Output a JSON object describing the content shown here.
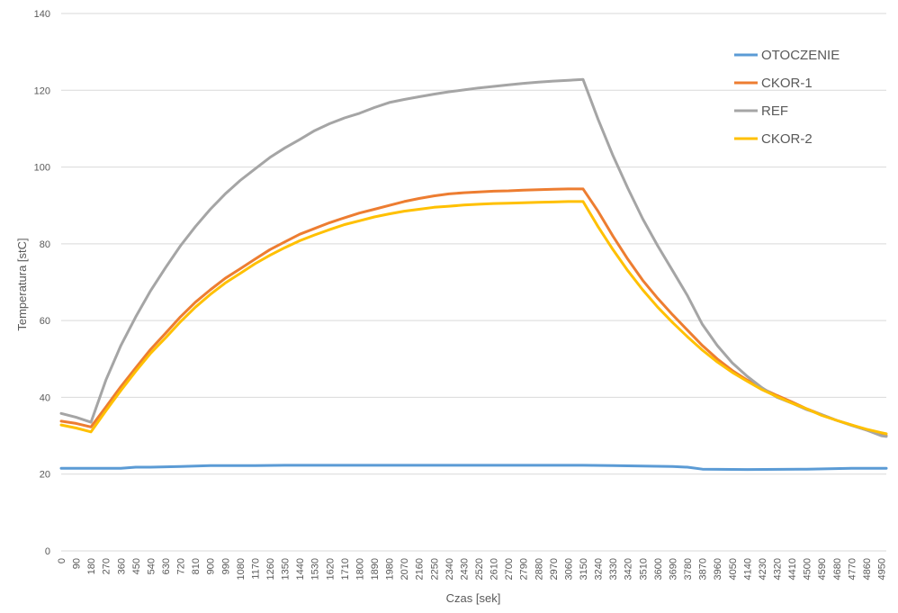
{
  "chart_data": {
    "type": "line",
    "title": "",
    "xlabel": "Czas [sek]",
    "ylabel": "Temperatura [stC]",
    "xlim": [
      0,
      4980
    ],
    "ylim": [
      0,
      140
    ],
    "y_ticks": [
      0,
      20,
      40,
      60,
      80,
      100,
      120,
      140
    ],
    "x_tick_step": 90,
    "grid": "horizontal",
    "legend": "top-right",
    "series": [
      {
        "name": "OTOCZENIE",
        "color": "#5b9bd5",
        "points": [
          [
            0,
            21.5
          ],
          [
            180,
            21.5
          ],
          [
            360,
            21.5
          ],
          [
            450,
            21.8
          ],
          [
            540,
            21.8
          ],
          [
            720,
            22.0
          ],
          [
            900,
            22.2
          ],
          [
            1170,
            22.2
          ],
          [
            1350,
            22.3
          ],
          [
            1800,
            22.3
          ],
          [
            2700,
            22.3
          ],
          [
            3150,
            22.3
          ],
          [
            3330,
            22.2
          ],
          [
            3690,
            22.0
          ],
          [
            3780,
            21.8
          ],
          [
            3870,
            21.3
          ],
          [
            4140,
            21.2
          ],
          [
            4500,
            21.3
          ],
          [
            4770,
            21.5
          ],
          [
            4980,
            21.5
          ]
        ]
      },
      {
        "name": "CKOR-1",
        "color": "#ed7d31",
        "points": [
          [
            0,
            33.8
          ],
          [
            90,
            33.2
          ],
          [
            180,
            32.3
          ],
          [
            270,
            37.5
          ],
          [
            360,
            42.8
          ],
          [
            450,
            47.7
          ],
          [
            540,
            52.5
          ],
          [
            630,
            56.7
          ],
          [
            720,
            61.0
          ],
          [
            810,
            64.8
          ],
          [
            900,
            68.0
          ],
          [
            990,
            71.0
          ],
          [
            1080,
            73.5
          ],
          [
            1170,
            76.0
          ],
          [
            1260,
            78.5
          ],
          [
            1350,
            80.5
          ],
          [
            1440,
            82.5
          ],
          [
            1530,
            84.0
          ],
          [
            1620,
            85.5
          ],
          [
            1710,
            86.8
          ],
          [
            1800,
            88.0
          ],
          [
            1890,
            89.0
          ],
          [
            1980,
            90.0
          ],
          [
            2070,
            91.0
          ],
          [
            2160,
            91.8
          ],
          [
            2250,
            92.5
          ],
          [
            2340,
            93.0
          ],
          [
            2430,
            93.3
          ],
          [
            2520,
            93.5
          ],
          [
            2610,
            93.7
          ],
          [
            2700,
            93.8
          ],
          [
            2790,
            94.0
          ],
          [
            2880,
            94.1
          ],
          [
            2970,
            94.2
          ],
          [
            3060,
            94.3
          ],
          [
            3150,
            94.3
          ],
          [
            3240,
            88.5
          ],
          [
            3330,
            82.0
          ],
          [
            3420,
            76.0
          ],
          [
            3510,
            70.5
          ],
          [
            3600,
            65.8
          ],
          [
            3690,
            61.5
          ],
          [
            3780,
            57.5
          ],
          [
            3870,
            53.5
          ],
          [
            3960,
            50.0
          ],
          [
            4050,
            47.0
          ],
          [
            4140,
            44.5
          ],
          [
            4230,
            42.3
          ],
          [
            4320,
            40.5
          ],
          [
            4410,
            38.8
          ],
          [
            4500,
            37.0
          ],
          [
            4590,
            35.5
          ],
          [
            4680,
            34.0
          ],
          [
            4770,
            32.8
          ],
          [
            4860,
            31.5
          ],
          [
            4950,
            30.3
          ],
          [
            4980,
            30.0
          ]
        ]
      },
      {
        "name": "REF",
        "color": "#a5a5a5",
        "points": [
          [
            0,
            35.8
          ],
          [
            90,
            34.8
          ],
          [
            180,
            33.5
          ],
          [
            270,
            44.5
          ],
          [
            360,
            53.5
          ],
          [
            450,
            61.0
          ],
          [
            540,
            67.8
          ],
          [
            630,
            73.8
          ],
          [
            720,
            79.5
          ],
          [
            810,
            84.5
          ],
          [
            900,
            89.0
          ],
          [
            990,
            93.0
          ],
          [
            1080,
            96.5
          ],
          [
            1170,
            99.5
          ],
          [
            1260,
            102.5
          ],
          [
            1350,
            105.0
          ],
          [
            1440,
            107.2
          ],
          [
            1530,
            109.5
          ],
          [
            1620,
            111.3
          ],
          [
            1710,
            112.8
          ],
          [
            1800,
            114.0
          ],
          [
            1890,
            115.5
          ],
          [
            1980,
            116.8
          ],
          [
            2070,
            117.6
          ],
          [
            2160,
            118.3
          ],
          [
            2250,
            119.0
          ],
          [
            2340,
            119.6
          ],
          [
            2430,
            120.1
          ],
          [
            2520,
            120.6
          ],
          [
            2610,
            121.0
          ],
          [
            2700,
            121.4
          ],
          [
            2790,
            121.8
          ],
          [
            2880,
            122.1
          ],
          [
            2970,
            122.4
          ],
          [
            3060,
            122.6
          ],
          [
            3150,
            122.8
          ],
          [
            3240,
            112.5
          ],
          [
            3330,
            103.0
          ],
          [
            3420,
            94.5
          ],
          [
            3510,
            86.5
          ],
          [
            3600,
            79.5
          ],
          [
            3690,
            73.0
          ],
          [
            3780,
            66.5
          ],
          [
            3870,
            59.0
          ],
          [
            3960,
            53.5
          ],
          [
            4050,
            49.0
          ],
          [
            4140,
            45.5
          ],
          [
            4230,
            42.5
          ],
          [
            4320,
            40.0
          ],
          [
            4410,
            38.5
          ],
          [
            4500,
            36.8
          ],
          [
            4590,
            35.5
          ],
          [
            4680,
            34.0
          ],
          [
            4770,
            32.7
          ],
          [
            4860,
            31.5
          ],
          [
            4950,
            30.0
          ],
          [
            4980,
            29.8
          ]
        ]
      },
      {
        "name": "CKOR-2",
        "color": "#ffc000",
        "points": [
          [
            0,
            32.8
          ],
          [
            90,
            32.0
          ],
          [
            180,
            31.0
          ],
          [
            270,
            36.5
          ],
          [
            360,
            41.8
          ],
          [
            450,
            46.8
          ],
          [
            540,
            51.5
          ],
          [
            630,
            55.5
          ],
          [
            720,
            59.7
          ],
          [
            810,
            63.5
          ],
          [
            900,
            66.8
          ],
          [
            990,
            69.8
          ],
          [
            1080,
            72.3
          ],
          [
            1170,
            74.8
          ],
          [
            1260,
            77.0
          ],
          [
            1350,
            79.0
          ],
          [
            1440,
            80.8
          ],
          [
            1530,
            82.3
          ],
          [
            1620,
            83.7
          ],
          [
            1710,
            85.0
          ],
          [
            1800,
            86.0
          ],
          [
            1890,
            87.0
          ],
          [
            1980,
            87.8
          ],
          [
            2070,
            88.5
          ],
          [
            2160,
            89.0
          ],
          [
            2250,
            89.5
          ],
          [
            2340,
            89.8
          ],
          [
            2430,
            90.1
          ],
          [
            2520,
            90.3
          ],
          [
            2610,
            90.5
          ],
          [
            2700,
            90.6
          ],
          [
            2790,
            90.7
          ],
          [
            2880,
            90.8
          ],
          [
            2970,
            90.9
          ],
          [
            3060,
            91.0
          ],
          [
            3150,
            91.0
          ],
          [
            3240,
            84.5
          ],
          [
            3330,
            78.5
          ],
          [
            3420,
            73.0
          ],
          [
            3510,
            68.0
          ],
          [
            3600,
            63.5
          ],
          [
            3690,
            59.5
          ],
          [
            3780,
            55.8
          ],
          [
            3870,
            52.3
          ],
          [
            3960,
            49.2
          ],
          [
            4050,
            46.5
          ],
          [
            4140,
            44.2
          ],
          [
            4230,
            42.0
          ],
          [
            4320,
            40.2
          ],
          [
            4410,
            38.5
          ],
          [
            4500,
            37.0
          ],
          [
            4590,
            35.3
          ],
          [
            4680,
            34.0
          ],
          [
            4770,
            32.8
          ],
          [
            4860,
            31.7
          ],
          [
            4950,
            30.8
          ],
          [
            4980,
            30.5
          ]
        ]
      }
    ]
  }
}
